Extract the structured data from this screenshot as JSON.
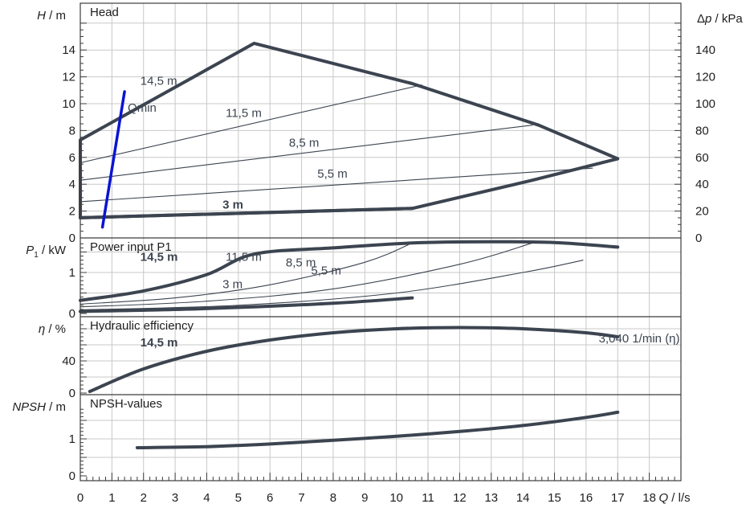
{
  "chart_data": [
    {
      "type": "line",
      "panel": "head",
      "title": "Head",
      "ylabel_italic": "H",
      "ylabel_unit": " / m",
      "ylabel_right_symbol": "Δ",
      "ylabel_right_italic": "p",
      "ylabel_right_unit": " / kPa",
      "ylim": [
        0,
        16
      ],
      "yticks": [
        "0",
        "2",
        "4",
        "6",
        "8",
        "10",
        "12",
        "14"
      ],
      "right_ylim": [
        0,
        160
      ],
      "right_yticks": [
        "0",
        "20",
        "40",
        "60",
        "80",
        "100",
        "120",
        "140"
      ],
      "series": [
        {
          "name": "14,5 m",
          "x": [
            0,
            0,
            5.5,
            10.5,
            14.5,
            17,
            14.3,
            10.5,
            0
          ],
          "y": [
            1.5,
            7.3,
            14.5,
            11.5,
            8.4,
            5.9,
            4.3,
            2.2,
            1.5
          ],
          "style": "envelope",
          "color": "#3c4450"
        },
        {
          "name": "11,5 m",
          "x": [
            0,
            10.8
          ],
          "y": [
            5.6,
            11.4
          ],
          "style": "thin",
          "color": "#3c4450"
        },
        {
          "name": "8,5 m",
          "x": [
            0,
            14.3
          ],
          "y": [
            4.3,
            8.4
          ],
          "style": "thin",
          "color": "#3c4450"
        },
        {
          "name": "5,5 m",
          "x": [
            0,
            16.2
          ],
          "y": [
            2.7,
            5.2
          ],
          "style": "thin",
          "color": "#3c4450"
        },
        {
          "name": "3 m",
          "x": [
            0,
            10.5
          ],
          "y": [
            1.5,
            2.2
          ],
          "style": "bold",
          "color": "#3c4450"
        },
        {
          "name": "Qmin",
          "x": [
            0.7,
            1.4
          ],
          "y": [
            0.8,
            10.9
          ],
          "style": "qmin",
          "color": "#0a14d2"
        }
      ],
      "labels": [
        {
          "text": "14,5 m",
          "x": 1.9,
          "y": 11.4,
          "style": "normal"
        },
        {
          "text": "Qmin",
          "x": 1.5,
          "y": 9.4,
          "style": "normal"
        },
        {
          "text": "11,5 m",
          "x": 4.6,
          "y": 9.0,
          "style": "normal"
        },
        {
          "text": "8,5 m",
          "x": 6.6,
          "y": 6.8,
          "style": "normal"
        },
        {
          "text": "5,5 m",
          "x": 7.5,
          "y": 4.5,
          "style": "normal"
        },
        {
          "text": "3 m",
          "x": 4.5,
          "y": 2.2,
          "style": "bold"
        }
      ]
    },
    {
      "type": "line",
      "panel": "power",
      "title": "Power input P1",
      "ylabel_italic": "P",
      "ylabel_sub": "1",
      "ylabel_unit": " / kW",
      "ylim": [
        0,
        1.7
      ],
      "yticks": [
        "0",
        "1"
      ],
      "series": [
        {
          "name": "14,5 m",
          "x": [
            0,
            2,
            4,
            5.5,
            8,
            10.5,
            13,
            15,
            17
          ],
          "y": [
            0.32,
            0.55,
            0.95,
            1.45,
            1.6,
            1.72,
            1.75,
            1.73,
            1.62
          ],
          "style": "bold",
          "color": "#3c4450"
        },
        {
          "name": "11,5 m",
          "x": [
            0,
            3,
            6,
            9,
            10.5
          ],
          "y": [
            0.23,
            0.38,
            0.7,
            1.25,
            1.72
          ],
          "style": "thin",
          "color": "#3c4450"
        },
        {
          "name": "8,5 m",
          "x": [
            0,
            4,
            8,
            12,
            14.3
          ],
          "y": [
            0.16,
            0.3,
            0.6,
            1.2,
            1.72
          ],
          "style": "thin",
          "color": "#3c4450"
        },
        {
          "name": "5,5 m",
          "x": [
            0,
            5,
            10,
            14,
            15.9
          ],
          "y": [
            0.09,
            0.2,
            0.5,
            1.0,
            1.3
          ],
          "style": "thin",
          "color": "#3c4450"
        },
        {
          "name": "3 m",
          "x": [
            0,
            4,
            8,
            10.5
          ],
          "y": [
            0.05,
            0.12,
            0.25,
            0.38
          ],
          "style": "bold",
          "color": "#3c4450"
        }
      ],
      "labels": [
        {
          "text": "14,5 m",
          "x": 1.9,
          "y": 1.28,
          "style": "bold"
        },
        {
          "text": "11,5 m",
          "x": 4.6,
          "y": 1.28,
          "style": "normal"
        },
        {
          "text": "8,5 m",
          "x": 6.5,
          "y": 1.15,
          "style": "normal"
        },
        {
          "text": "5,5 m",
          "x": 7.3,
          "y": 0.95,
          "style": "normal"
        },
        {
          "text": "3 m",
          "x": 4.5,
          "y": 0.62,
          "style": "normal"
        }
      ]
    },
    {
      "type": "line",
      "panel": "efficiency",
      "title": "Hydraulic efficiency",
      "ylabel_italic": "η",
      "ylabel_unit": " / %",
      "ylim": [
        0,
        85
      ],
      "yticks": [
        "0",
        "40"
      ],
      "series": [
        {
          "name": "14,5 m",
          "x": [
            0.3,
            2,
            4,
            6,
            8,
            10,
            12,
            14,
            16,
            17
          ],
          "y": [
            2,
            30,
            52,
            66,
            75,
            80,
            81.5,
            80,
            75,
            70
          ],
          "style": "bold",
          "color": "#3c4450"
        }
      ],
      "labels": [
        {
          "text": "14,5 m",
          "x": 1.9,
          "y": 58,
          "style": "bold"
        },
        {
          "text": "3,040 1/min (η)",
          "x": 16.4,
          "y": 63,
          "style": "normal"
        }
      ]
    },
    {
      "type": "line",
      "panel": "npsh",
      "title": "NPSH-values",
      "ylabel_italic": "NPSH",
      "ylabel_unit": " / m",
      "ylim": [
        0,
        1.85
      ],
      "yticks": [
        "0",
        "1"
      ],
      "xlim": [
        0,
        19
      ],
      "xticks": [
        "0",
        "1",
        "2",
        "3",
        "4",
        "5",
        "6",
        "7",
        "8",
        "9",
        "10",
        "11",
        "12",
        "13",
        "14",
        "15",
        "16",
        "17",
        "18"
      ],
      "xlabel_italic": "Q",
      "xlabel_unit": " / l/s",
      "series": [
        {
          "name": "",
          "x": [
            1.8,
            4,
            6,
            8,
            10,
            12,
            14,
            16,
            17
          ],
          "y": [
            0.76,
            0.79,
            0.86,
            0.96,
            1.07,
            1.2,
            1.36,
            1.58,
            1.72
          ],
          "style": "bold",
          "color": "#3c4450"
        }
      ],
      "labels": []
    }
  ]
}
